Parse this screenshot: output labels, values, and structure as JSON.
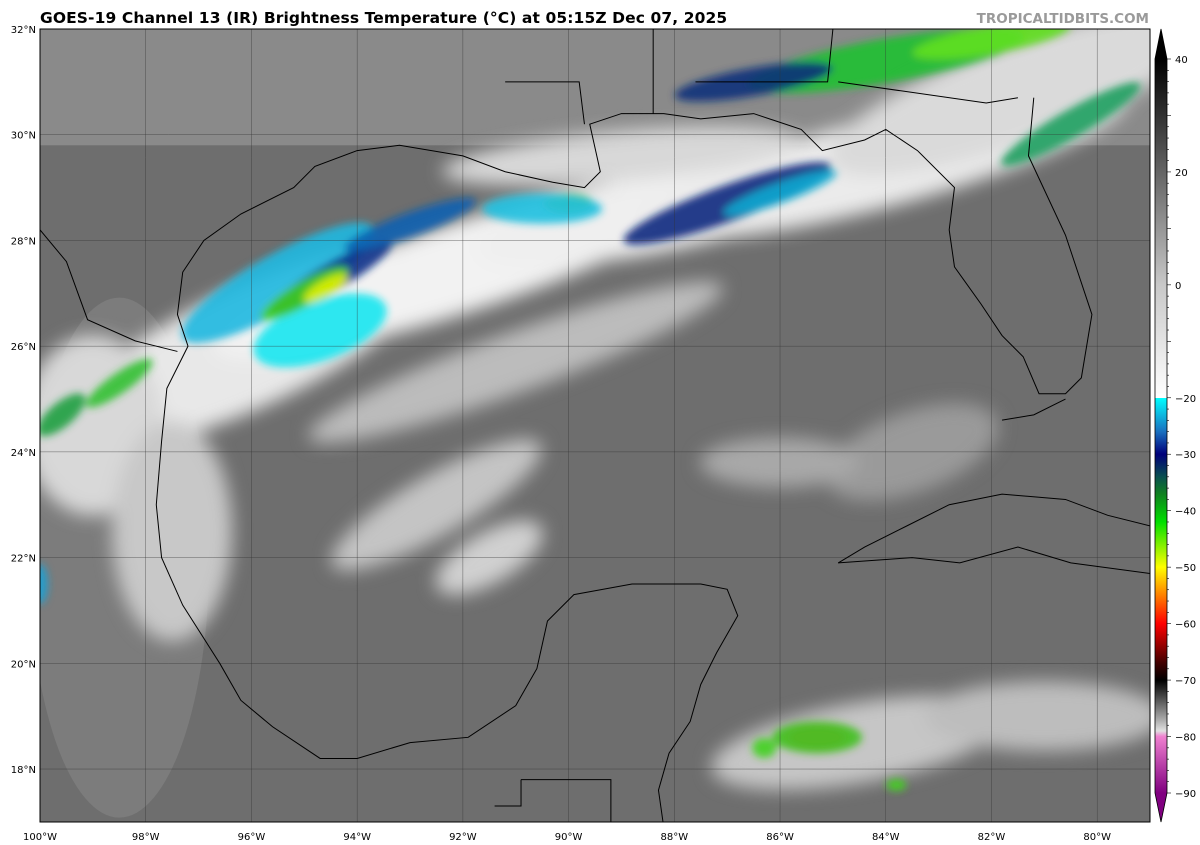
{
  "header": {
    "title": "GOES-19 Channel 13 (IR) Brightness Temperature (°C) at 05:15Z Dec 07, 2025",
    "brand": "TROPICALTIDBITS.COM"
  },
  "map": {
    "lon_range": [
      -100,
      -79
    ],
    "lat_range": [
      17,
      32
    ],
    "lon_labels": [
      "100°W",
      "98°W",
      "96°W",
      "94°W",
      "92°W",
      "90°W",
      "88°W",
      "86°W",
      "84°W",
      "82°W",
      "80°W"
    ],
    "lon_values": [
      -100,
      -98,
      -96,
      -94,
      -92,
      -90,
      -88,
      -86,
      -84,
      -82,
      -80
    ],
    "lat_labels": [
      "32°N",
      "30°N",
      "28°N",
      "26°N",
      "24°N",
      "22°N",
      "20°N",
      "18°N"
    ],
    "lat_values": [
      32,
      30,
      28,
      26,
      24,
      22,
      20,
      18
    ]
  },
  "colorbar": {
    "range": [
      -90,
      40
    ],
    "tick_labels": [
      "40",
      "20",
      "0",
      "−20",
      "−30",
      "−40",
      "−50",
      "−60",
      "−70",
      "−80",
      "−90"
    ],
    "tick_values": [
      40,
      20,
      0,
      -20,
      -30,
      -40,
      -50,
      -60,
      -70,
      -80,
      -90
    ],
    "colors": {
      "warm_gray_low": "#ffffff",
      "warm_gray_high": "#000000",
      "cyan": "#00ffff",
      "dark_blue": "#00007a",
      "green": "#00e000",
      "yellow": "#ffff00",
      "orange": "#ff8000",
      "red": "#ff0000",
      "dark_red": "#400000",
      "pink": "#f080d0",
      "purple": "#800080"
    }
  }
}
